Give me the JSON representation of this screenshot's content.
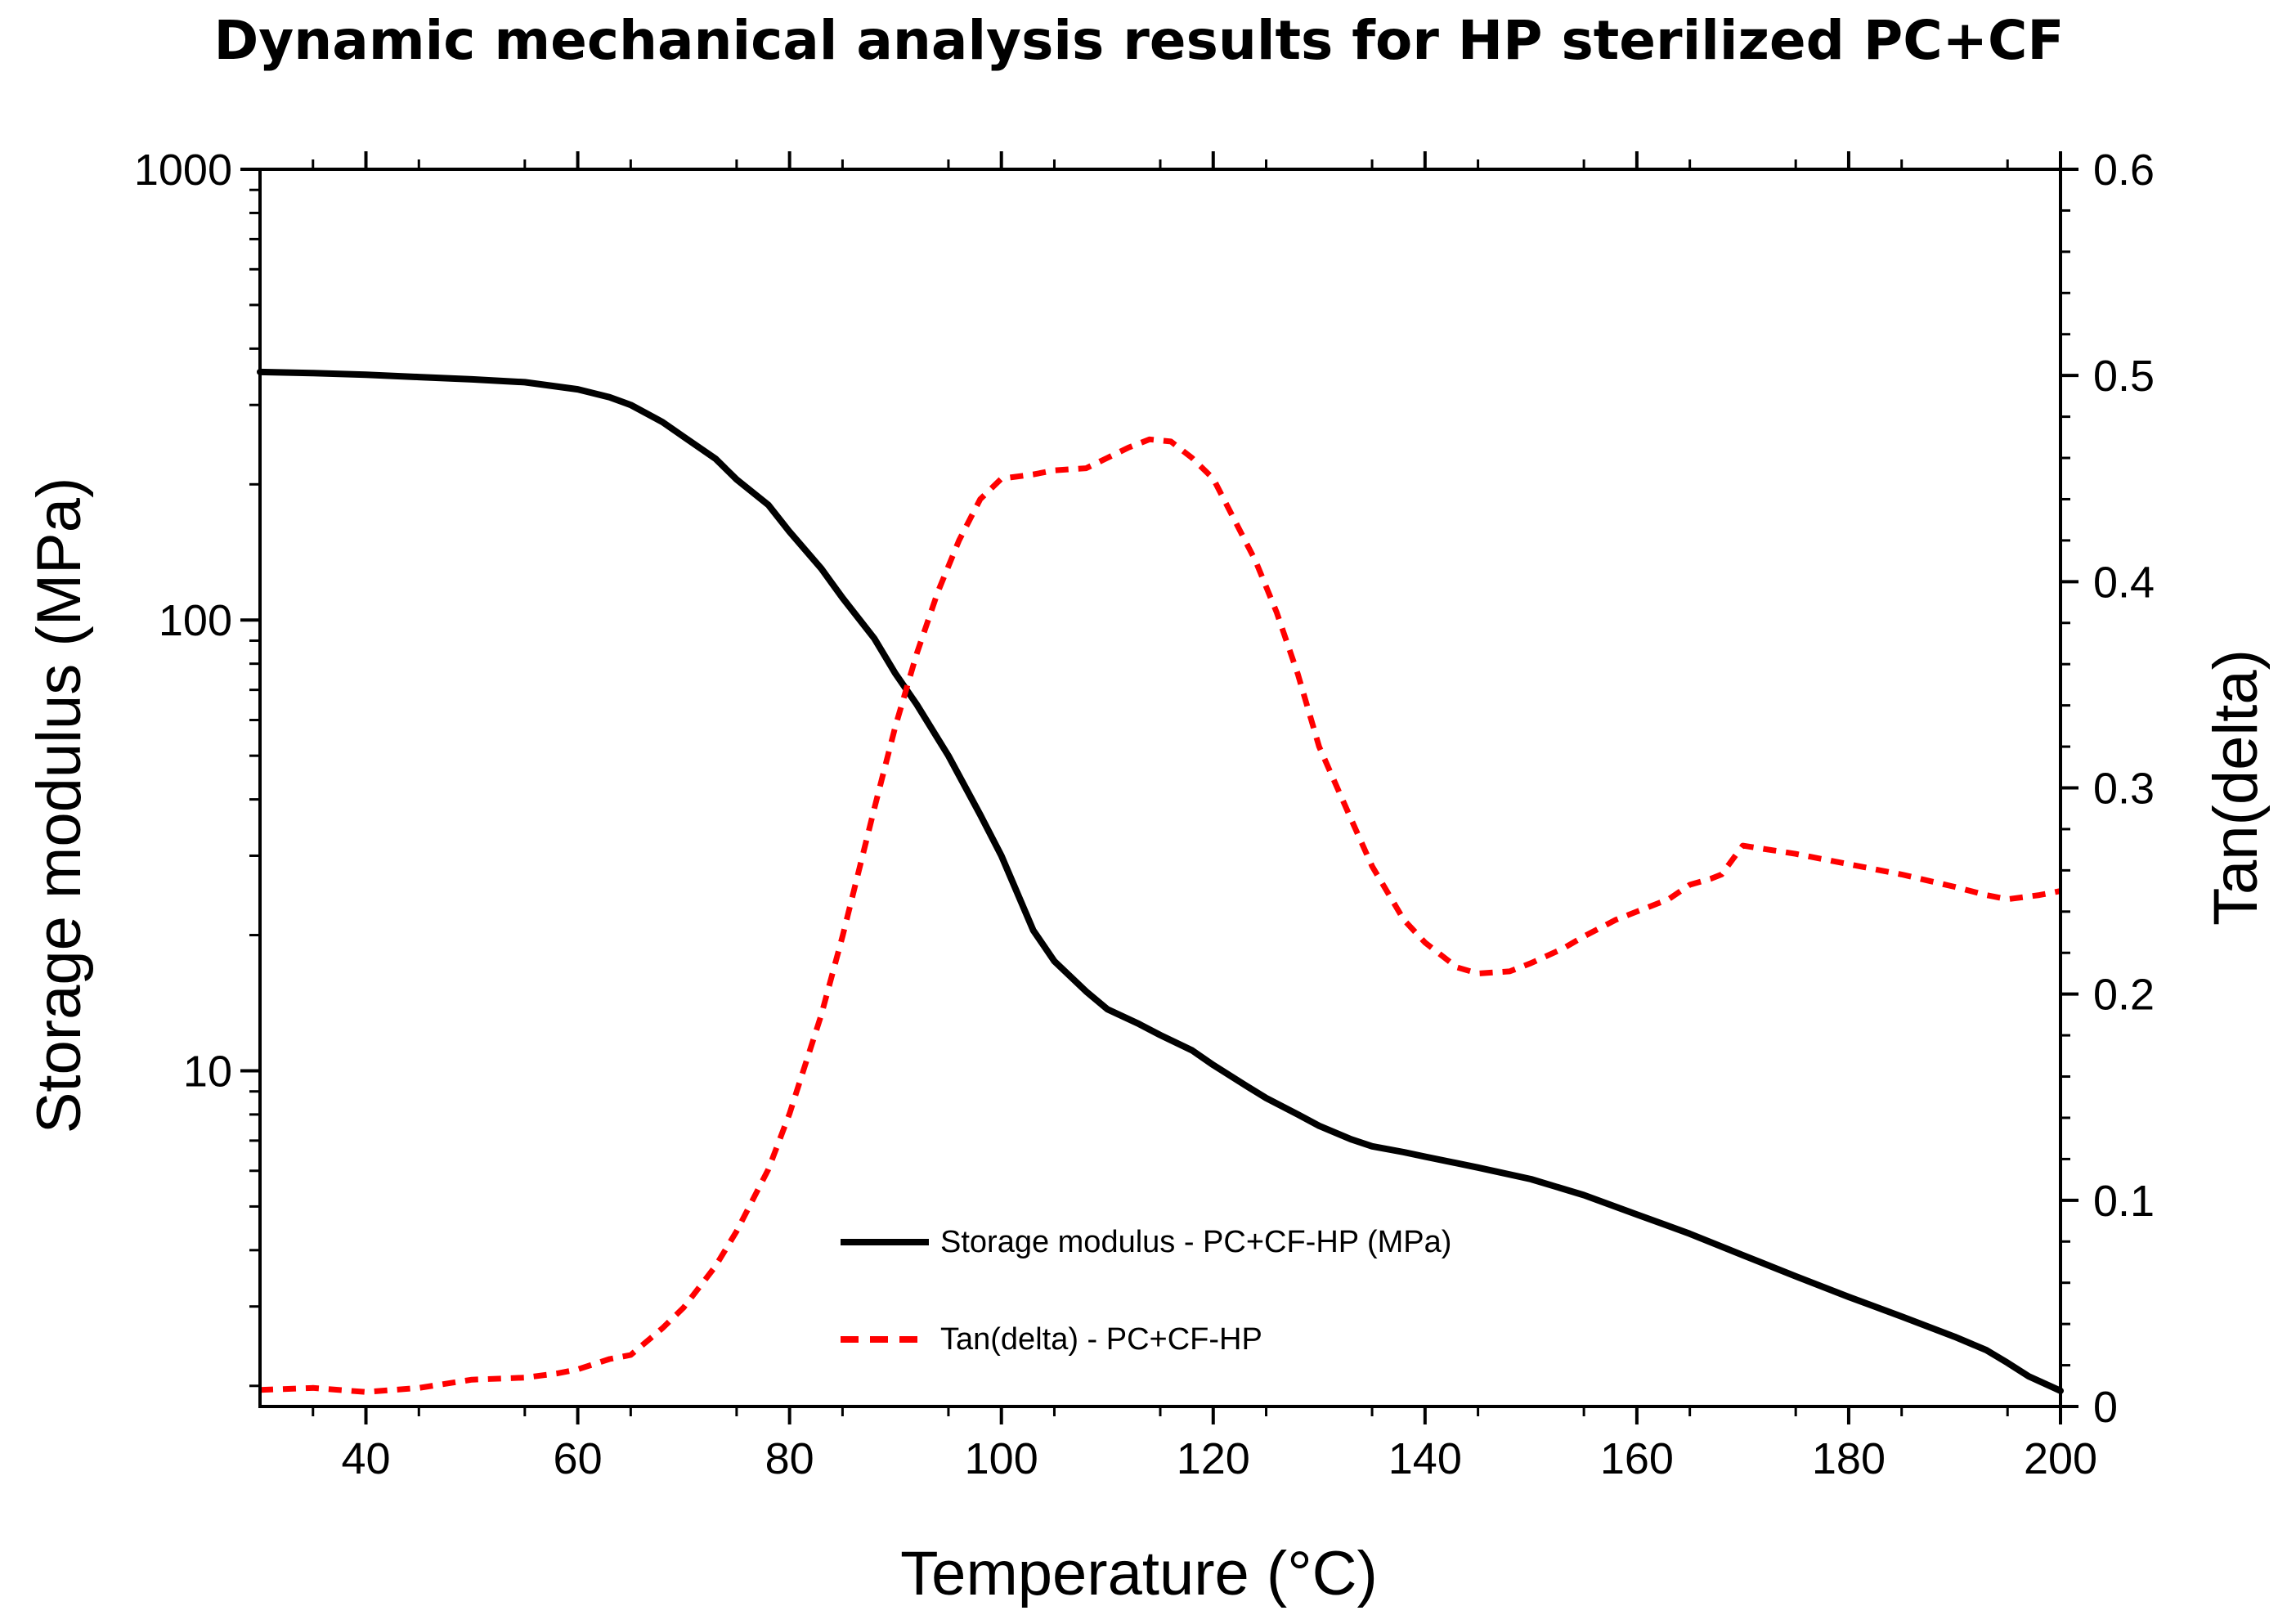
{
  "chart_data": {
    "type": "line",
    "title": "Dynamic mechanical analysis results for HP sterilized PC+CF",
    "xlabel": "Temperature (°C)",
    "ylabel_left": "Storage modulus (MPa)",
    "ylabel_right": "Tan(delta)",
    "xlim": [
      30,
      200
    ],
    "ylim_left": [
      1.8,
      1000
    ],
    "ylim_left_scale": "log",
    "ylim_right": [
      0,
      0.6
    ],
    "x_ticks": [
      "40",
      "60",
      "80",
      "100",
      "120",
      "140",
      "160",
      "180",
      "200"
    ],
    "y_left_ticks": [
      "10",
      "100",
      "1000"
    ],
    "y_right_ticks": [
      "0",
      "0.1",
      "0.2",
      "0.3",
      "0.4",
      "0.5",
      "0.6"
    ],
    "legend_position": "bottom-center",
    "series": [
      {
        "name": "Storage modulus - PC+CF-HP (MPa)",
        "axis": "left",
        "color": "#000000",
        "style": "solid",
        "x": [
          30,
          35,
          40,
          45,
          50,
          55,
          60,
          63,
          65,
          68,
          70,
          73,
          75,
          78,
          80,
          83,
          85,
          88,
          90,
          92,
          95,
          98,
          100,
          103,
          105,
          108,
          110,
          113,
          115,
          118,
          120,
          123,
          125,
          128,
          130,
          133,
          135,
          138,
          140,
          145,
          150,
          155,
          160,
          165,
          170,
          175,
          180,
          185,
          190,
          193,
          195,
          197,
          200
        ],
        "values": [
          355,
          353,
          350,
          346,
          342,
          337,
          325,
          312,
          300,
          275,
          255,
          228,
          205,
          180,
          157,
          130,
          112,
          91,
          76,
          65,
          50,
          37,
          30,
          20.5,
          17.5,
          15,
          13.7,
          12.7,
          12,
          11.1,
          10.3,
          9.3,
          8.7,
          8,
          7.55,
          7.05,
          6.8,
          6.6,
          6.45,
          6.1,
          5.75,
          5.3,
          4.8,
          4.35,
          3.9,
          3.5,
          3.15,
          2.85,
          2.57,
          2.4,
          2.25,
          2.1,
          1.95
        ]
      },
      {
        "name": "Tan(delta) - PC+CF-HP",
        "axis": "right",
        "color": "#ff0000",
        "style": "dashed",
        "x": [
          30,
          35,
          40,
          45,
          50,
          55,
          58,
          60,
          63,
          65,
          68,
          70,
          73,
          75,
          78,
          80,
          83,
          85,
          88,
          90,
          92,
          94,
          96,
          98,
          100,
          103,
          105,
          108,
          110,
          112,
          114,
          116,
          118,
          120,
          122,
          124,
          126,
          128,
          130,
          133,
          135,
          138,
          140,
          143,
          145,
          148,
          150,
          153,
          155,
          158,
          160,
          163,
          165,
          167,
          168,
          170,
          175,
          180,
          185,
          190,
          193,
          195,
          198,
          200
        ],
        "values": [
          0.008,
          0.009,
          0.007,
          0.009,
          0.013,
          0.014,
          0.016,
          0.018,
          0.023,
          0.025,
          0.038,
          0.048,
          0.068,
          0.085,
          0.115,
          0.142,
          0.19,
          0.228,
          0.29,
          0.33,
          0.365,
          0.395,
          0.42,
          0.44,
          0.45,
          0.452,
          0.454,
          0.455,
          0.46,
          0.465,
          0.469,
          0.468,
          0.46,
          0.45,
          0.43,
          0.41,
          0.385,
          0.355,
          0.32,
          0.285,
          0.262,
          0.236,
          0.225,
          0.213,
          0.21,
          0.211,
          0.215,
          0.222,
          0.228,
          0.236,
          0.24,
          0.246,
          0.253,
          0.256,
          0.258,
          0.272,
          0.268,
          0.263,
          0.258,
          0.252,
          0.248,
          0.246,
          0.248,
          0.25
        ]
      }
    ]
  }
}
